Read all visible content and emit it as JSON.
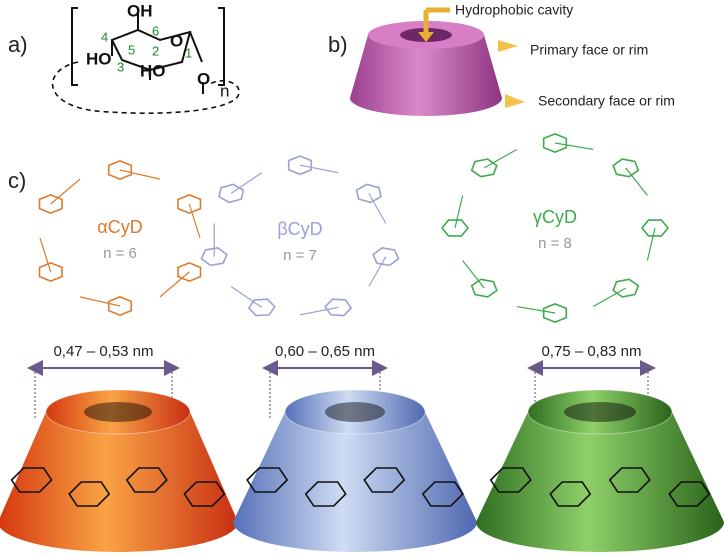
{
  "panels": {
    "a": {
      "label": "a)",
      "atoms": [
        "OH",
        "HO",
        "HO",
        "O",
        "O"
      ],
      "numbers": [
        "6",
        "4",
        "5",
        "2",
        "3",
        "1"
      ],
      "repeat": "n"
    },
    "b": {
      "label": "b)",
      "annotations": [
        "Hydrophobic cavity",
        "Primary face or rim",
        "Secondary face or rim"
      ]
    },
    "c": {
      "label": "c)",
      "cyclodextrins": [
        {
          "name": "αCyD",
          "n": "n = 6",
          "diameter": "0,47 – 0,53 nm"
        },
        {
          "name": "βCyD",
          "n": "n = 7",
          "diameter": "0,60 – 0,65 nm"
        },
        {
          "name": "γCyD",
          "n": "n = 8",
          "diameter": "0,75 – 0,83 nm"
        }
      ]
    }
  }
}
